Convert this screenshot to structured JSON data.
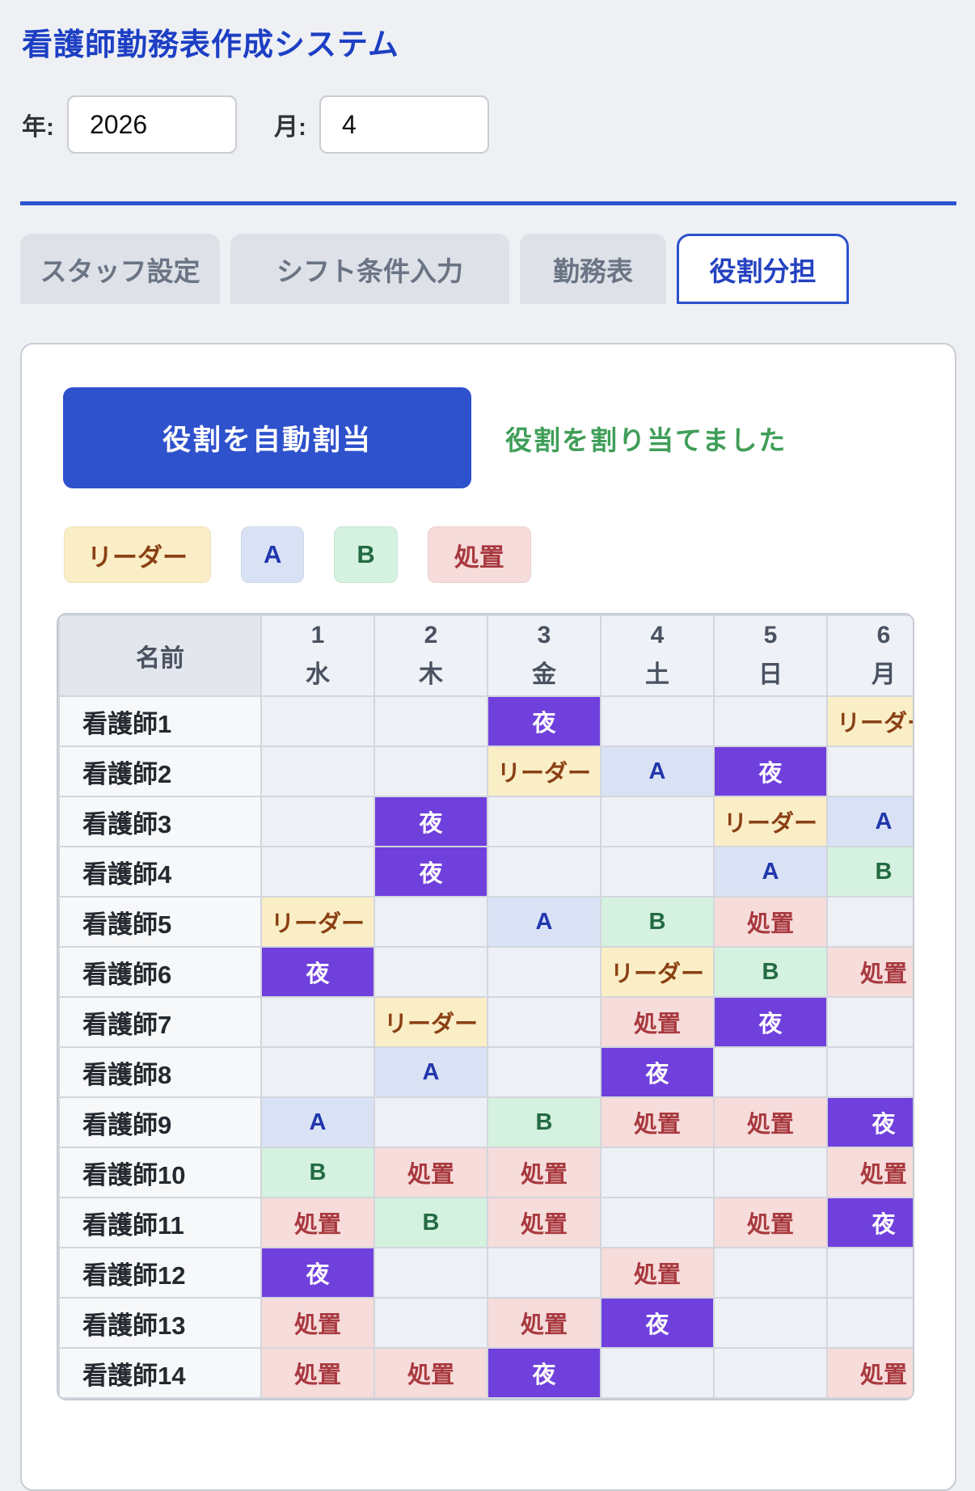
{
  "app": {
    "title": "看護師勤務表作成システム"
  },
  "controls": {
    "year_label": "年:",
    "year_value": "2026",
    "month_label": "月:",
    "month_value": "4"
  },
  "tabs": [
    {
      "id": "staff-settings",
      "label": "スタッフ設定",
      "active": false
    },
    {
      "id": "shift-conditions",
      "label": "シフト条件入力",
      "active": false
    },
    {
      "id": "schedule",
      "label": "勤務表",
      "active": false
    },
    {
      "id": "role-assignment",
      "label": "役割分担",
      "active": true
    }
  ],
  "panel": {
    "assign_button_label": "役割を自動割当",
    "status_message": "役割を割り当てました"
  },
  "legend": [
    {
      "key": "leader",
      "label": "リーダー"
    },
    {
      "key": "a",
      "label": "A"
    },
    {
      "key": "b",
      "label": "B"
    },
    {
      "key": "treatment",
      "label": "処置"
    }
  ],
  "role_labels": {
    "night": "夜",
    "leader": "リーダー",
    "a": "A",
    "b": "B",
    "treatment": "処置"
  },
  "colors": {
    "title_blue": "#1d3fc4",
    "divider_blue": "#2b55d3",
    "button_blue": "#2e51cc",
    "active_tab_blue": "#2b52cc",
    "status_green": "#3f9e58",
    "night_purple": "#7040dd",
    "leader_bg": "#faeec6",
    "leader_text": "#8a4014",
    "a_bg": "#d9e2f5",
    "a_text": "#2137ad",
    "b_bg": "#d5f1df",
    "b_text": "#236b42",
    "treatment_bg": "#f6dcdb",
    "treatment_text": "#a8393f"
  },
  "table": {
    "name_header": "名前",
    "days": [
      {
        "num": "1",
        "dow": "水"
      },
      {
        "num": "2",
        "dow": "木"
      },
      {
        "num": "3",
        "dow": "金"
      },
      {
        "num": "4",
        "dow": "土"
      },
      {
        "num": "5",
        "dow": "日"
      },
      {
        "num": "6",
        "dow": "月"
      }
    ],
    "rows": [
      {
        "name": "看護師1",
        "cells": [
          "",
          "",
          "night",
          "",
          "",
          "leader"
        ]
      },
      {
        "name": "看護師2",
        "cells": [
          "",
          "",
          "leader",
          "a",
          "night",
          ""
        ]
      },
      {
        "name": "看護師3",
        "cells": [
          "",
          "night",
          "",
          "",
          "leader",
          "a"
        ]
      },
      {
        "name": "看護師4",
        "cells": [
          "",
          "night",
          "",
          "",
          "a",
          "b"
        ]
      },
      {
        "name": "看護師5",
        "cells": [
          "leader",
          "",
          "a",
          "b",
          "treatment",
          ""
        ]
      },
      {
        "name": "看護師6",
        "cells": [
          "night",
          "",
          "",
          "leader",
          "b",
          "treatment"
        ]
      },
      {
        "name": "看護師7",
        "cells": [
          "",
          "leader",
          "",
          "treatment",
          "night",
          ""
        ]
      },
      {
        "name": "看護師8",
        "cells": [
          "",
          "a",
          "",
          "night",
          "",
          ""
        ]
      },
      {
        "name": "看護師9",
        "cells": [
          "a",
          "",
          "b",
          "treatment",
          "treatment",
          "night"
        ]
      },
      {
        "name": "看護師10",
        "cells": [
          "b",
          "treatment",
          "treatment",
          "",
          "",
          "treatment"
        ]
      },
      {
        "name": "看護師11",
        "cells": [
          "treatment",
          "b",
          "treatment",
          "",
          "treatment",
          "night"
        ]
      },
      {
        "name": "看護師12",
        "cells": [
          "night",
          "",
          "",
          "treatment",
          "",
          ""
        ]
      },
      {
        "name": "看護師13",
        "cells": [
          "treatment",
          "",
          "treatment",
          "night",
          "",
          ""
        ]
      },
      {
        "name": "看護師14",
        "cells": [
          "treatment",
          "treatment",
          "night",
          "",
          "",
          "treatment"
        ]
      }
    ]
  }
}
